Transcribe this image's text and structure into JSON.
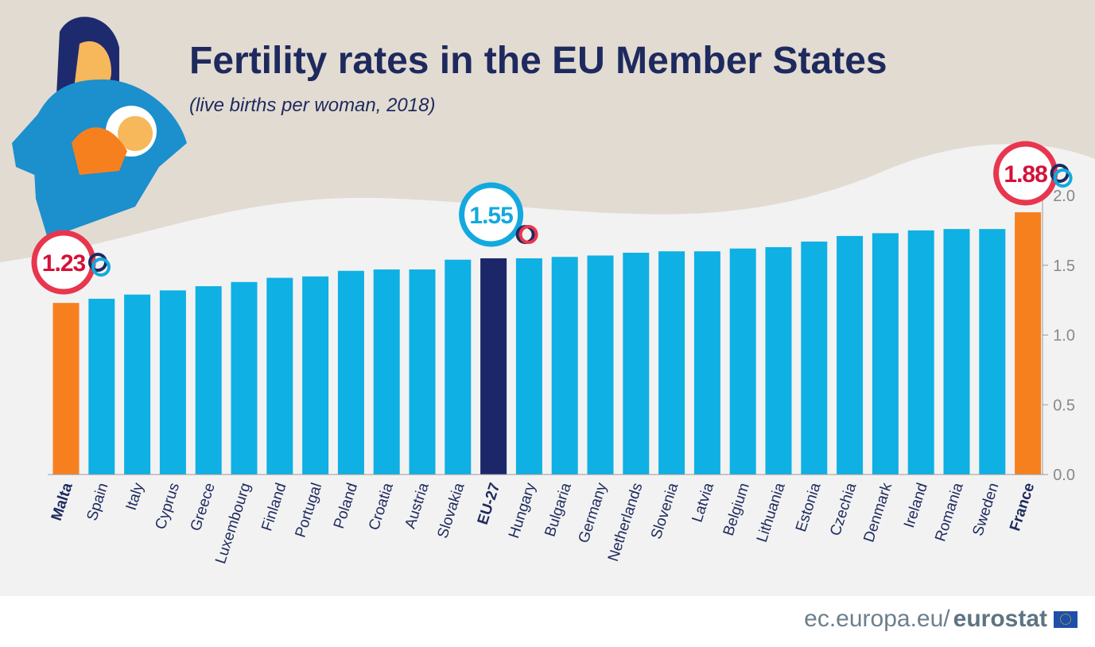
{
  "chart_data": {
    "type": "bar",
    "title": "Fertility rates in the EU Member States",
    "subtitle": "(live births per woman, 2018)",
    "categories": [
      "Malta",
      "Spain",
      "Italy",
      "Cyprus",
      "Greece",
      "Luxembourg",
      "Finland",
      "Portugal",
      "Poland",
      "Croatia",
      "Austria",
      "Slovakia",
      "EU-27",
      "Hungary",
      "Bulgaria",
      "Germany",
      "Netherlands",
      "Slovenia",
      "Latvia",
      "Belgium",
      "Lithuania",
      "Estonia",
      "Czechia",
      "Denmark",
      "Ireland",
      "Romania",
      "Sweden",
      "France"
    ],
    "values": [
      1.23,
      1.26,
      1.29,
      1.32,
      1.35,
      1.38,
      1.41,
      1.42,
      1.46,
      1.47,
      1.47,
      1.54,
      1.55,
      1.55,
      1.56,
      1.57,
      1.59,
      1.6,
      1.6,
      1.62,
      1.63,
      1.67,
      1.71,
      1.73,
      1.75,
      1.76,
      1.76,
      1.88
    ],
    "ylim": [
      0,
      2.0
    ],
    "yticks": [
      "0.0",
      "0.5",
      "1.0",
      "1.5",
      "2.0"
    ],
    "highlights": [
      {
        "category": "Malta",
        "label": "1.23",
        "role": "lowest"
      },
      {
        "category": "EU-27",
        "label": "1.55",
        "role": "average"
      },
      {
        "category": "France",
        "label": "1.88",
        "role": "highest"
      }
    ],
    "grid": false,
    "colors": {
      "default": "#0fb0e4",
      "extreme": "#f7801e",
      "average": "#1b2769",
      "title": "#1e2a5e",
      "highlight_ring": "#e8364f",
      "highlight_text": "#d4113a",
      "average_text": "#12a9df"
    }
  },
  "footer": {
    "site": "ec.europa.eu/",
    "brand": "eurostat"
  }
}
